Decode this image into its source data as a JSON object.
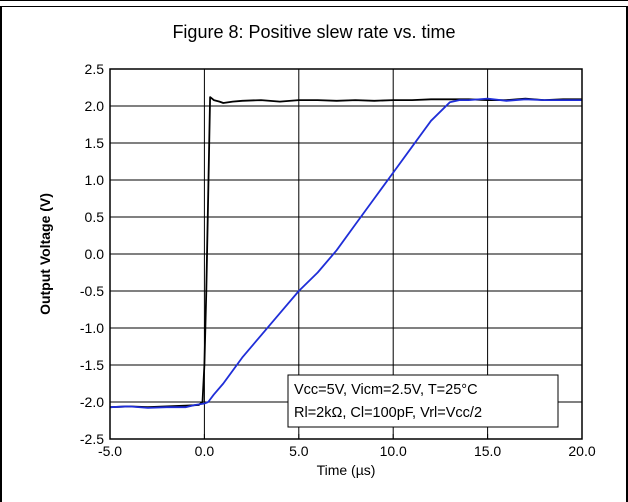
{
  "figure": {
    "title": "Figure 8: Positive slew rate vs. time"
  },
  "chart_data": {
    "type": "line",
    "title": "Figure 8: Positive slew rate vs. time",
    "xlabel": "Time (µs)",
    "ylabel": "Output Voltage (V)",
    "xlim": [
      -5.0,
      20.0
    ],
    "ylim": [
      -2.5,
      2.5
    ],
    "x_ticks": [
      -5.0,
      0.0,
      5.0,
      10.0,
      15.0,
      20.0
    ],
    "x_tick_labels": [
      "-5.0",
      "0.0",
      "5.0",
      "10.0",
      "15.0",
      "20.0"
    ],
    "y_ticks": [
      2.5,
      2.0,
      1.5,
      1.0,
      0.5,
      0.0,
      -0.5,
      -1.0,
      -1.5,
      -2.0,
      -2.5
    ],
    "y_tick_labels": [
      "2.5",
      "2.0",
      "1.5",
      "1.0",
      "0.5",
      "0.0",
      "-0.5",
      "-1.0",
      "-1.5",
      "-2.0",
      "-2.5"
    ],
    "grid": true,
    "series": [
      {
        "color": "#000000",
        "x": [
          -5.0,
          -4.0,
          -3.0,
          -2.0,
          -1.0,
          -0.3,
          -0.1,
          0.0,
          0.1,
          0.2,
          0.3,
          0.4,
          0.5,
          0.8,
          1.0,
          1.5,
          2.0,
          3.0,
          4.0,
          5.0,
          6.0,
          7.0,
          8.0,
          9.0,
          10.0,
          11.0,
          12.0,
          13.0,
          14.0,
          15.0,
          16.0,
          17.0,
          18.0,
          19.0,
          20.0
        ],
        "y": [
          -2.07,
          -2.06,
          -2.07,
          -2.06,
          -2.05,
          -2.04,
          -2.0,
          -1.5,
          -0.5,
          0.8,
          2.12,
          2.1,
          2.08,
          2.06,
          2.04,
          2.06,
          2.07,
          2.08,
          2.06,
          2.08,
          2.08,
          2.07,
          2.08,
          2.07,
          2.08,
          2.08,
          2.09,
          2.09,
          2.09,
          2.08,
          2.08,
          2.1,
          2.08,
          2.09,
          2.09
        ]
      },
      {
        "color": "#1f2ed8",
        "x": [
          -5.0,
          -4.0,
          -3.0,
          -2.0,
          -1.0,
          -0.5,
          0.0,
          0.2,
          0.5,
          1.0,
          2.0,
          3.0,
          4.0,
          5.0,
          6.0,
          7.0,
          8.0,
          9.0,
          10.0,
          11.0,
          12.0,
          13.0,
          13.5,
          14.0,
          15.0,
          16.0,
          17.0,
          18.0,
          19.0,
          20.0
        ],
        "y": [
          -2.07,
          -2.06,
          -2.08,
          -2.07,
          -2.07,
          -2.04,
          -2.02,
          -2.0,
          -1.9,
          -1.75,
          -1.4,
          -1.1,
          -0.8,
          -0.5,
          -0.25,
          0.05,
          0.4,
          0.75,
          1.1,
          1.45,
          1.8,
          2.05,
          2.08,
          2.08,
          2.1,
          2.07,
          2.09,
          2.08,
          2.08,
          2.08
        ]
      }
    ],
    "annotation": {
      "lines": [
        "Vcc=5V, Vicm=2.5V, T=25°C",
        "Rl=2kΩ, Cl=100pF, Vrl=Vcc/2"
      ]
    }
  }
}
